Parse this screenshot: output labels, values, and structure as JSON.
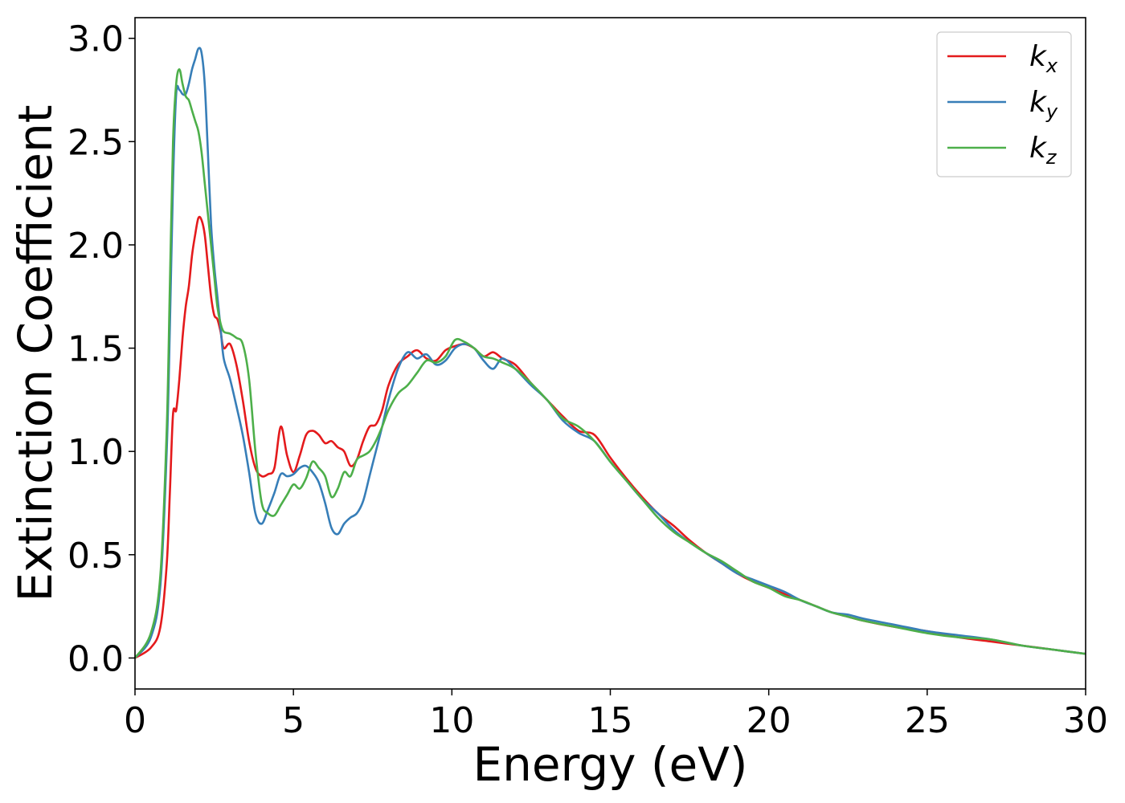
{
  "chart_data": {
    "type": "line",
    "title": "",
    "xlabel": "Energy (eV)",
    "ylabel": "Extinction Coefficient",
    "xlim": [
      0,
      30
    ],
    "ylim": [
      -0.15,
      3.1
    ],
    "xticks": [
      0,
      5,
      10,
      15,
      20,
      25,
      30
    ],
    "xtick_labels": [
      "0",
      "5",
      "10",
      "15",
      "20",
      "25",
      "30"
    ],
    "yticks": [
      0.0,
      0.5,
      1.0,
      1.5,
      2.0,
      2.5,
      3.0
    ],
    "ytick_labels": [
      "0.0",
      "0.5",
      "1.0",
      "1.5",
      "2.0",
      "2.5",
      "3.0"
    ],
    "grid": false,
    "legend_position": "top-right",
    "series": [
      {
        "name": "k_x",
        "label_main": "k",
        "label_sub": "x",
        "color": "#e41a1c",
        "x": [
          0,
          0.5,
          0.8,
          1.0,
          1.1,
          1.2,
          1.3,
          1.4,
          1.5,
          1.6,
          1.7,
          1.8,
          1.9,
          2.0,
          2.1,
          2.2,
          2.3,
          2.4,
          2.5,
          2.6,
          2.7,
          2.8,
          3.0,
          3.2,
          3.4,
          3.6,
          3.8,
          4.0,
          4.2,
          4.4,
          4.6,
          4.8,
          5.0,
          5.2,
          5.4,
          5.6,
          5.8,
          6.0,
          6.2,
          6.4,
          6.6,
          6.8,
          7.0,
          7.2,
          7.4,
          7.6,
          7.8,
          8.0,
          8.3,
          8.6,
          8.9,
          9.2,
          9.5,
          9.8,
          10.1,
          10.4,
          10.7,
          11.0,
          11.3,
          11.6,
          12.0,
          12.5,
          13.0,
          13.5,
          14.0,
          14.5,
          15.0,
          15.5,
          16.0,
          16.5,
          17.0,
          17.5,
          18.0,
          18.5,
          19.0,
          19.5,
          20.0,
          20.5,
          21.0,
          21.5,
          22.0,
          22.5,
          23.0,
          24.0,
          25.0,
          26.0,
          27.0,
          28.0,
          29.0,
          30.0
        ],
        "values": [
          0.0,
          0.05,
          0.15,
          0.45,
          0.8,
          1.18,
          1.2,
          1.35,
          1.55,
          1.7,
          1.8,
          1.95,
          2.05,
          2.13,
          2.12,
          2.05,
          1.9,
          1.75,
          1.66,
          1.64,
          1.58,
          1.5,
          1.52,
          1.42,
          1.25,
          1.05,
          0.92,
          0.88,
          0.89,
          0.92,
          1.12,
          0.98,
          0.9,
          0.98,
          1.08,
          1.1,
          1.08,
          1.04,
          1.05,
          1.02,
          1.0,
          0.93,
          0.96,
          1.05,
          1.12,
          1.13,
          1.2,
          1.32,
          1.42,
          1.46,
          1.49,
          1.45,
          1.44,
          1.49,
          1.51,
          1.52,
          1.5,
          1.46,
          1.48,
          1.45,
          1.42,
          1.33,
          1.25,
          1.17,
          1.1,
          1.08,
          0.97,
          0.87,
          0.78,
          0.7,
          0.64,
          0.57,
          0.51,
          0.46,
          0.41,
          0.37,
          0.34,
          0.31,
          0.28,
          0.25,
          0.22,
          0.2,
          0.18,
          0.15,
          0.13,
          0.1,
          0.08,
          0.06,
          0.04,
          0.02
        ]
      },
      {
        "name": "k_y",
        "label_main": "k",
        "label_sub": "y",
        "color": "#377eb8",
        "x": [
          0,
          0.5,
          0.8,
          1.0,
          1.1,
          1.2,
          1.3,
          1.4,
          1.5,
          1.6,
          1.7,
          1.8,
          1.9,
          2.0,
          2.1,
          2.2,
          2.3,
          2.4,
          2.5,
          2.6,
          2.7,
          2.8,
          3.0,
          3.2,
          3.4,
          3.6,
          3.8,
          4.0,
          4.2,
          4.4,
          4.6,
          4.8,
          5.0,
          5.2,
          5.4,
          5.6,
          5.8,
          6.0,
          6.2,
          6.4,
          6.6,
          6.8,
          7.0,
          7.2,
          7.4,
          7.6,
          7.8,
          8.0,
          8.3,
          8.6,
          8.9,
          9.2,
          9.5,
          9.8,
          10.1,
          10.4,
          10.7,
          11.0,
          11.3,
          11.6,
          12.0,
          12.5,
          13.0,
          13.5,
          14.0,
          14.5,
          15.0,
          15.5,
          16.0,
          16.5,
          17.0,
          17.5,
          18.0,
          18.5,
          19.0,
          19.5,
          20.0,
          20.5,
          21.0,
          21.5,
          22.0,
          22.5,
          23.0,
          24.0,
          25.0,
          26.0,
          27.0,
          28.0,
          29.0,
          30.0
        ],
        "values": [
          0.0,
          0.1,
          0.35,
          1.0,
          1.6,
          2.3,
          2.73,
          2.75,
          2.73,
          2.73,
          2.78,
          2.85,
          2.9,
          2.95,
          2.93,
          2.78,
          2.45,
          2.1,
          1.9,
          1.75,
          1.6,
          1.45,
          1.35,
          1.22,
          1.08,
          0.9,
          0.7,
          0.65,
          0.72,
          0.8,
          0.89,
          0.88,
          0.89,
          0.92,
          0.93,
          0.9,
          0.85,
          0.75,
          0.63,
          0.6,
          0.65,
          0.68,
          0.7,
          0.76,
          0.88,
          1.0,
          1.12,
          1.25,
          1.4,
          1.48,
          1.45,
          1.47,
          1.42,
          1.44,
          1.5,
          1.52,
          1.5,
          1.44,
          1.4,
          1.45,
          1.4,
          1.32,
          1.25,
          1.15,
          1.09,
          1.05,
          0.95,
          0.86,
          0.77,
          0.7,
          0.62,
          0.56,
          0.51,
          0.46,
          0.41,
          0.38,
          0.35,
          0.32,
          0.28,
          0.25,
          0.22,
          0.21,
          0.19,
          0.16,
          0.13,
          0.11,
          0.09,
          0.06,
          0.04,
          0.02
        ]
      },
      {
        "name": "k_z",
        "label_main": "k",
        "label_sub": "z",
        "color": "#4daf4a",
        "x": [
          0,
          0.5,
          0.8,
          1.0,
          1.1,
          1.2,
          1.3,
          1.4,
          1.5,
          1.6,
          1.7,
          1.8,
          1.9,
          2.0,
          2.1,
          2.2,
          2.3,
          2.4,
          2.5,
          2.6,
          2.7,
          2.8,
          3.0,
          3.2,
          3.4,
          3.6,
          3.8,
          4.0,
          4.2,
          4.4,
          4.6,
          4.8,
          5.0,
          5.2,
          5.4,
          5.6,
          5.8,
          6.0,
          6.2,
          6.4,
          6.6,
          6.8,
          7.0,
          7.2,
          7.4,
          7.6,
          7.8,
          8.0,
          8.3,
          8.6,
          8.9,
          9.2,
          9.5,
          9.8,
          10.1,
          10.4,
          10.7,
          11.0,
          11.3,
          11.6,
          12.0,
          12.5,
          13.0,
          13.5,
          14.0,
          14.5,
          15.0,
          15.5,
          16.0,
          16.5,
          17.0,
          17.5,
          18.0,
          18.5,
          19.0,
          19.5,
          20.0,
          20.5,
          21.0,
          21.5,
          22.0,
          22.5,
          23.0,
          24.0,
          25.0,
          26.0,
          27.0,
          28.0,
          29.0,
          30.0
        ],
        "values": [
          0.0,
          0.12,
          0.4,
          1.1,
          1.8,
          2.5,
          2.78,
          2.85,
          2.78,
          2.72,
          2.7,
          2.65,
          2.6,
          2.55,
          2.45,
          2.3,
          2.15,
          2.0,
          1.85,
          1.7,
          1.62,
          1.58,
          1.57,
          1.55,
          1.52,
          1.35,
          1.0,
          0.75,
          0.7,
          0.69,
          0.74,
          0.79,
          0.84,
          0.82,
          0.87,
          0.95,
          0.92,
          0.88,
          0.78,
          0.82,
          0.9,
          0.88,
          0.96,
          0.98,
          1.0,
          1.05,
          1.12,
          1.2,
          1.28,
          1.32,
          1.38,
          1.44,
          1.43,
          1.46,
          1.54,
          1.53,
          1.5,
          1.46,
          1.45,
          1.43,
          1.4,
          1.33,
          1.25,
          1.16,
          1.12,
          1.05,
          0.95,
          0.86,
          0.77,
          0.68,
          0.61,
          0.56,
          0.51,
          0.47,
          0.42,
          0.37,
          0.34,
          0.3,
          0.28,
          0.25,
          0.22,
          0.2,
          0.18,
          0.15,
          0.12,
          0.1,
          0.09,
          0.06,
          0.04,
          0.02
        ]
      }
    ]
  }
}
